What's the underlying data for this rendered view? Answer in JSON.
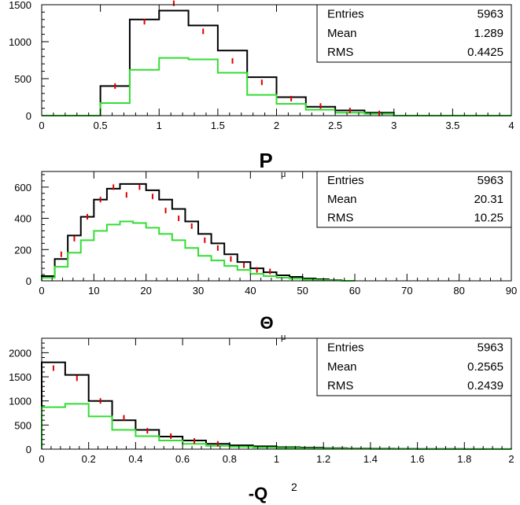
{
  "colors": {
    "total": "#000000",
    "selected": "#33dd33",
    "points": "#dd0000",
    "frame": "#000000"
  },
  "chart_data": [
    {
      "type": "histogram",
      "xlabel": "P",
      "xlabel_sub": "μ",
      "xlim": [
        0,
        4
      ],
      "ylim": [
        0,
        1500
      ],
      "x_ticks": [
        "0",
        "0.5",
        "1",
        "1.5",
        "2",
        "2.5",
        "3",
        "3.5",
        "4"
      ],
      "y_ticks": [
        "0",
        "500",
        "1000",
        "1500"
      ],
      "bin_edges": [
        0,
        0.25,
        0.5,
        0.75,
        1.0,
        1.25,
        1.5,
        1.75,
        2.0,
        2.25,
        2.5,
        2.75,
        3.0,
        3.25,
        3.5,
        3.75,
        4.0
      ],
      "series": [
        {
          "values": [
            0,
            0,
            400,
            1300,
            1420,
            1220,
            880,
            520,
            250,
            120,
            70,
            40,
            0,
            0,
            0,
            0
          ]
        },
        {
          "values": [
            0,
            0,
            170,
            620,
            780,
            760,
            580,
            280,
            160,
            80,
            40,
            25,
            0,
            0,
            0,
            0
          ]
        },
        {
          "x": [
            0.625,
            0.875,
            1.125,
            1.375,
            1.625,
            1.875,
            2.125,
            2.375,
            2.625,
            2.875
          ],
          "values": [
            400,
            1270,
            1520,
            1140,
            740,
            450,
            230,
            130,
            70,
            30
          ]
        }
      ],
      "stats": {
        "entries_label": "Entries",
        "entries": "5963",
        "mean_label": "Mean",
        "mean": "1.289",
        "rms_label": "RMS",
        "rms": "0.4425"
      }
    },
    {
      "type": "histogram",
      "xlabel": "Θ",
      "xlabel_sub": "μ",
      "xlim": [
        0,
        90
      ],
      "ylim": [
        0,
        700
      ],
      "x_ticks": [
        "0",
        "10",
        "20",
        "30",
        "40",
        "50",
        "60",
        "70",
        "80",
        "90"
      ],
      "y_ticks": [
        "0",
        "200",
        "400",
        "600"
      ],
      "bin_edges": [
        0,
        2.5,
        5,
        7.5,
        10,
        12.5,
        15,
        17.5,
        20,
        22.5,
        25,
        27.5,
        30,
        32.5,
        35,
        37.5,
        40,
        42.5,
        45,
        47.5,
        50,
        52.5,
        55,
        57.5,
        60
      ],
      "series": [
        {
          "values": [
            30,
            140,
            290,
            410,
            520,
            590,
            620,
            620,
            580,
            520,
            460,
            380,
            300,
            240,
            170,
            120,
            80,
            55,
            35,
            25,
            15,
            10,
            5,
            0
          ]
        },
        {
          "values": [
            20,
            90,
            180,
            260,
            320,
            360,
            380,
            370,
            340,
            300,
            260,
            210,
            160,
            130,
            95,
            70,
            45,
            30,
            20,
            14,
            8,
            5,
            3,
            0
          ]
        },
        {
          "x": [
            3.75,
            6.25,
            8.75,
            11.25,
            13.75,
            16.25,
            18.75,
            21.25,
            23.75,
            26.25,
            28.75,
            31.25,
            33.75,
            36.25,
            38.75,
            41.25,
            43.75
          ],
          "values": [
            170,
            270,
            410,
            520,
            600,
            550,
            600,
            540,
            450,
            400,
            350,
            260,
            210,
            140,
            100,
            70,
            60
          ]
        }
      ],
      "stats": {
        "entries_label": "Entries",
        "entries": "5963",
        "mean_label": "Mean",
        "mean": "20.31",
        "rms_label": "RMS",
        "rms": "10.25"
      }
    },
    {
      "type": "histogram",
      "xlabel": "-Q",
      "xlabel_sup": "2",
      "xlim": [
        0,
        2
      ],
      "ylim": [
        0,
        2300
      ],
      "x_ticks": [
        "0",
        "0.2",
        "0.4",
        "0.6",
        "0.8",
        "1",
        "1.2",
        "1.4",
        "1.6",
        "1.8",
        "2"
      ],
      "y_ticks": [
        "0",
        "500",
        "1000",
        "1500",
        "2000"
      ],
      "bin_edges": [
        0,
        0.1,
        0.2,
        0.3,
        0.4,
        0.5,
        0.6,
        0.7,
        0.8,
        0.9,
        1.0,
        1.1,
        1.2,
        1.3,
        1.4,
        1.5,
        1.6,
        1.7,
        1.8,
        1.9,
        2.0
      ],
      "series": [
        {
          "values": [
            1800,
            1540,
            1000,
            600,
            400,
            260,
            180,
            110,
            80,
            60,
            40,
            30,
            20,
            15,
            10,
            8,
            5,
            5,
            3,
            2
          ]
        },
        {
          "values": [
            870,
            940,
            680,
            400,
            270,
            180,
            110,
            70,
            50,
            35,
            25,
            15,
            10,
            8,
            5,
            4,
            3,
            2,
            2,
            1
          ]
        },
        {
          "x": [
            0.05,
            0.15,
            0.25,
            0.35,
            0.45,
            0.55,
            0.65,
            0.75
          ],
          "values": [
            1680,
            1470,
            1000,
            650,
            380,
            270,
            170,
            110
          ]
        }
      ],
      "stats": {
        "entries_label": "Entries",
        "entries": "5963",
        "mean_label": "Mean",
        "mean": "0.2565",
        "rms_label": "RMS",
        "rms": "0.2439"
      }
    }
  ]
}
